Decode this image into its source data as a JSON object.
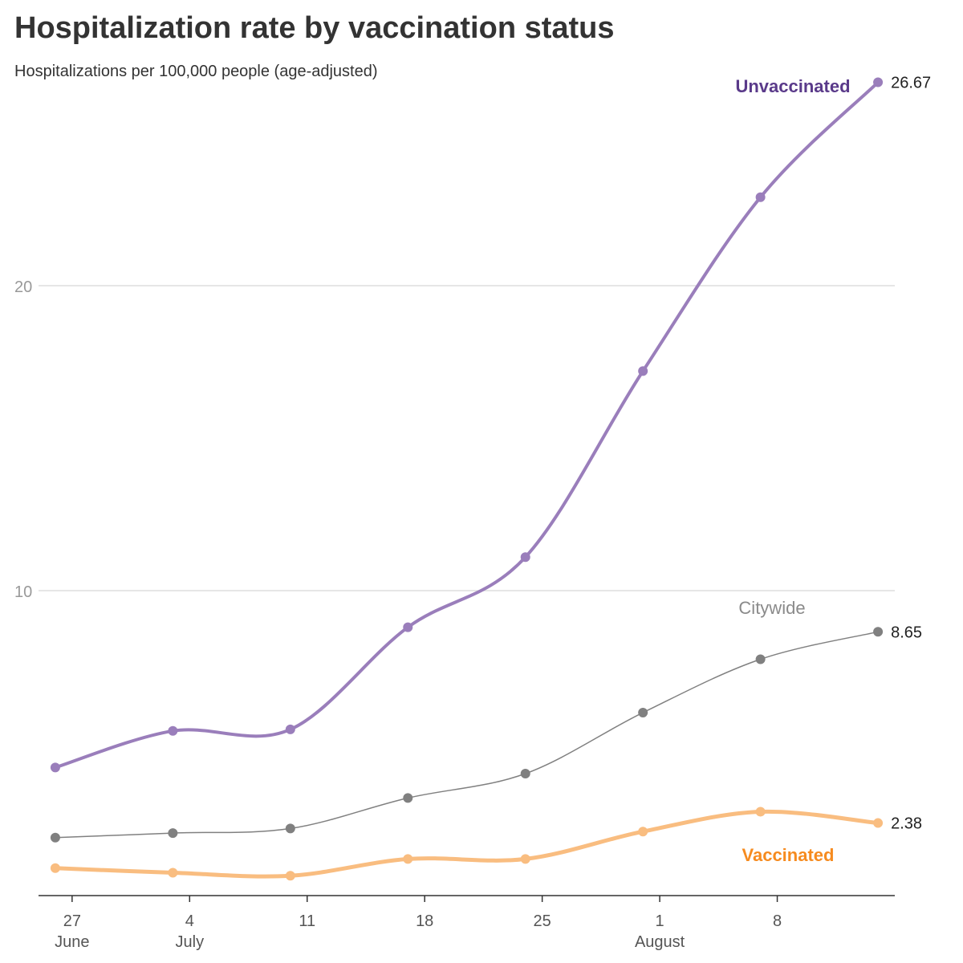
{
  "title": "Hospitalization rate by vaccination status",
  "subtitle": "Hospitalizations per 100,000 people (age-adjusted)",
  "chart_data": {
    "type": "line",
    "title": "Hospitalization rate by vaccination status",
    "subtitle": "Hospitalizations per 100,000 people (age-adjusted)",
    "xlabel": "",
    "ylabel": "",
    "x": [
      "2021-06-26",
      "2021-07-03",
      "2021-07-10",
      "2021-07-17",
      "2021-07-24",
      "2021-07-31",
      "2021-08-07",
      "2021-08-14"
    ],
    "xlim": [
      "2021-06-25",
      "2021-08-15"
    ],
    "ylim": [
      0,
      27
    ],
    "yticks": [
      {
        "value": 10,
        "label": "10"
      },
      {
        "value": 20,
        "label": "20"
      }
    ],
    "xticks": [
      {
        "date": "2021-06-27",
        "label": "27",
        "month": "June"
      },
      {
        "date": "2021-07-04",
        "label": "4",
        "month": "July"
      },
      {
        "date": "2021-07-11",
        "label": "11",
        "month": ""
      },
      {
        "date": "2021-07-18",
        "label": "18",
        "month": ""
      },
      {
        "date": "2021-07-25",
        "label": "25",
        "month": ""
      },
      {
        "date": "2021-08-01",
        "label": "1",
        "month": "August"
      },
      {
        "date": "2021-08-08",
        "label": "8",
        "month": ""
      }
    ],
    "grid": "horizontal",
    "legend": "direct labels",
    "series": [
      {
        "name": "Unvaccinated",
        "key": "unvaccinated",
        "color": "#9a7ebb",
        "label_color": "#5a3a8a",
        "label_bold": true,
        "stroke": 4,
        "values": [
          4.2,
          5.4,
          5.45,
          8.8,
          11.1,
          17.2,
          22.9,
          26.67
        ],
        "end_label": "26.67"
      },
      {
        "name": "Citywide",
        "key": "citywide",
        "color": "#808080",
        "label_color": "#8a8a8a",
        "label_bold": false,
        "stroke": 1.5,
        "values": [
          1.9,
          2.05,
          2.2,
          3.2,
          4.0,
          6.0,
          7.75,
          8.65
        ],
        "end_label": "8.65"
      },
      {
        "name": "Vaccinated",
        "key": "vaccinated",
        "color": "#f9bd80",
        "label_color": "#f68b1f",
        "label_bold": true,
        "stroke": 5,
        "values": [
          0.9,
          0.75,
          0.65,
          1.2,
          1.2,
          2.1,
          2.75,
          2.38
        ],
        "end_label": "2.38"
      }
    ]
  }
}
